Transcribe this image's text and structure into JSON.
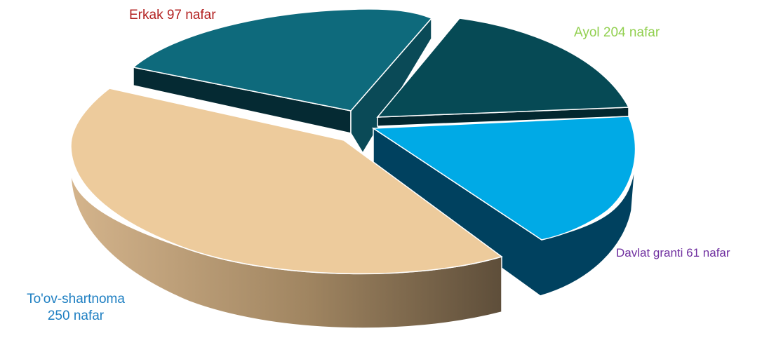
{
  "chart_data": {
    "type": "pie",
    "style": "3d-exploded",
    "title": "",
    "slices": [
      {
        "key": "toov",
        "label_line1": "To'ov-shartnoma",
        "label_line2": "250 nafar",
        "value": 250,
        "color": "#EDCB9C",
        "label_color": "#1E7FC2"
      },
      {
        "key": "erkak",
        "label": "Erkak 97 nafar",
        "value": 97,
        "color": "#0E6A7C",
        "label_color": "#B32222"
      },
      {
        "key": "ayol",
        "label": "Ayol 204 nafar",
        "value": 204,
        "color": "#064A55",
        "label_color": "#92D050"
      },
      {
        "key": "davlat",
        "label": "Davlat granti 61 nafar",
        "value": 61,
        "color": "#00AAE6",
        "label_color": "#7030A0"
      }
    ]
  }
}
